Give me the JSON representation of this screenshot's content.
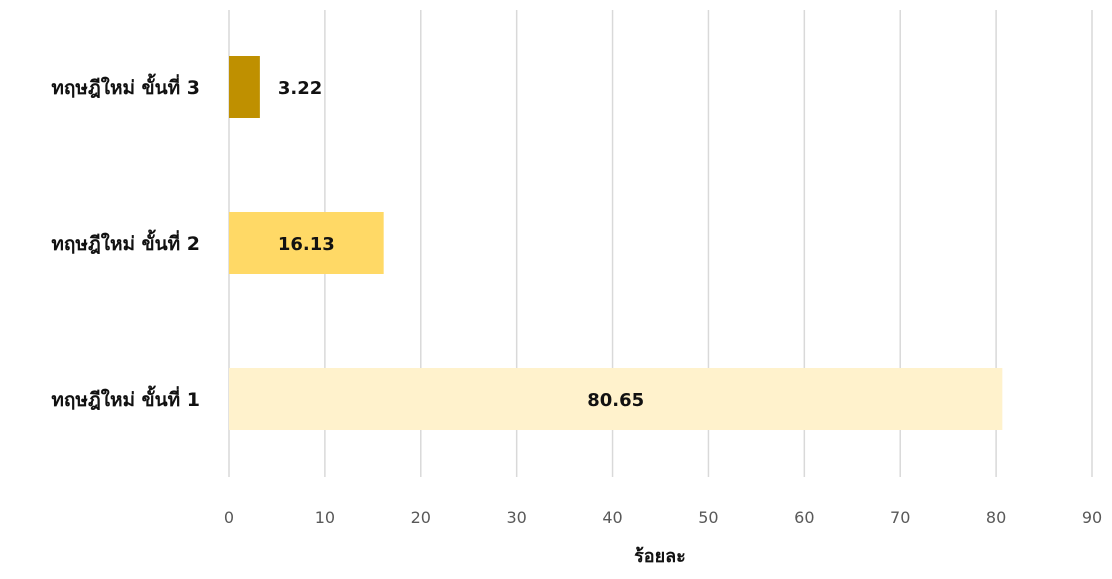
{
  "chart_data": {
    "type": "bar",
    "orientation": "horizontal",
    "categories": [
      "ทฤษฎีใหม่ ขั้นที่ 1",
      "ทฤษฎีใหม่ ขั้นที่ 2",
      "ทฤษฎีใหม่ ขั้นที่ 3"
    ],
    "values": [
      80.65,
      16.13,
      3.22
    ],
    "data_labels": [
      "80.65",
      "16.13",
      "3.22"
    ],
    "bar_colors": [
      "#fff2cc",
      "#ffd966",
      "#bf9000"
    ],
    "xlabel": "ร้อยละ",
    "xlim": [
      0,
      90
    ],
    "x_ticks": [
      0,
      10,
      20,
      30,
      40,
      50,
      60,
      70,
      80,
      90
    ],
    "grid": true,
    "legend": "none"
  }
}
